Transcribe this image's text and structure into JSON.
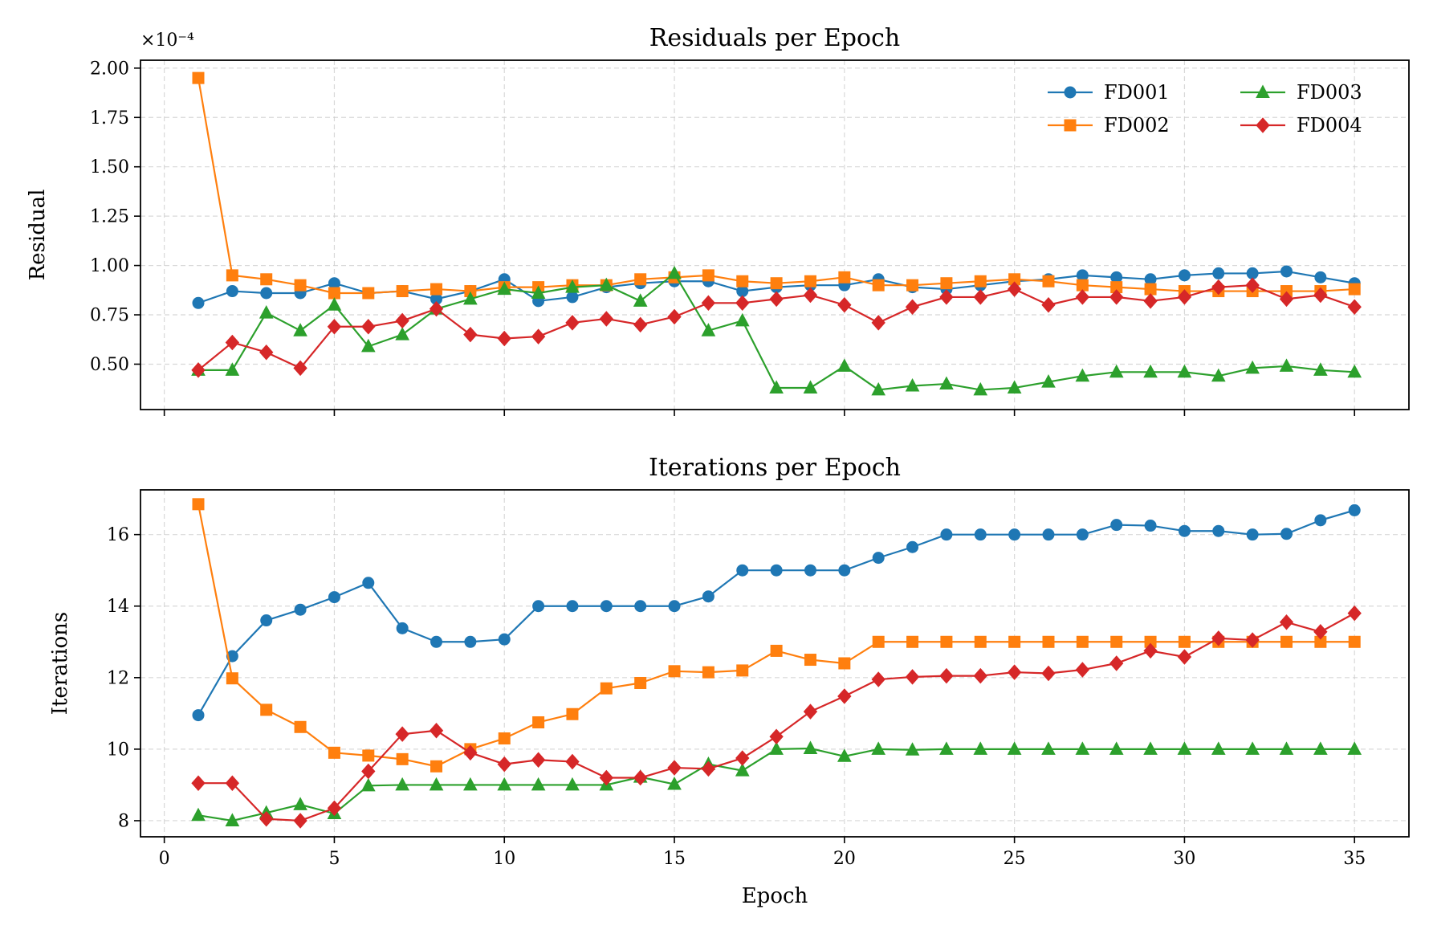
{
  "chart_data": [
    {
      "type": "line",
      "title": "Residuals per Epoch",
      "xlabel": "",
      "ylabel": "Residual",
      "multiplier": "×10⁻⁴",
      "xlim": [
        -0.7,
        36.6
      ],
      "ylim": [
        0.27,
        2.04
      ],
      "xticks": [
        0,
        5,
        10,
        15,
        20,
        25,
        30,
        35
      ],
      "yticks": [
        0.5,
        0.75,
        1.0,
        1.25,
        1.5,
        1.75,
        2.0
      ],
      "ytick_labels": [
        "0.50",
        "0.75",
        "1.00",
        "1.25",
        "1.50",
        "1.75",
        "2.00"
      ],
      "show_xtick_labels": false,
      "grid": true,
      "legend": {
        "placement": "top-right",
        "columns": 2
      },
      "x": [
        1,
        2,
        3,
        4,
        5,
        6,
        7,
        8,
        9,
        10,
        11,
        12,
        13,
        14,
        15,
        16,
        17,
        18,
        19,
        20,
        21,
        22,
        23,
        24,
        25,
        26,
        27,
        28,
        29,
        30,
        31,
        32,
        33,
        34,
        35
      ],
      "series": [
        {
          "name": "FD001",
          "color": "#1f77b4",
          "marker": "circle",
          "values": [
            0.81,
            0.87,
            0.86,
            0.86,
            0.91,
            0.86,
            0.87,
            0.83,
            0.87,
            0.93,
            0.82,
            0.84,
            0.89,
            0.91,
            0.92,
            0.92,
            0.87,
            0.89,
            0.9,
            0.9,
            0.93,
            0.89,
            0.88,
            0.9,
            0.92,
            0.93,
            0.95,
            0.94,
            0.93,
            0.95,
            0.96,
            0.96,
            0.97,
            0.94,
            0.91
          ]
        },
        {
          "name": "FD002",
          "color": "#ff7f0e",
          "marker": "square",
          "values": [
            1.95,
            0.95,
            0.93,
            0.9,
            0.86,
            0.86,
            0.87,
            0.88,
            0.87,
            0.89,
            0.89,
            0.9,
            0.9,
            0.93,
            0.94,
            0.95,
            0.92,
            0.91,
            0.92,
            0.94,
            0.9,
            0.9,
            0.91,
            0.92,
            0.93,
            0.92,
            0.9,
            0.89,
            0.88,
            0.87,
            0.87,
            0.87,
            0.87,
            0.87,
            0.88
          ]
        },
        {
          "name": "FD003",
          "color": "#2ca02c",
          "marker": "triangle",
          "values": [
            0.47,
            0.47,
            0.76,
            0.67,
            0.8,
            0.59,
            0.65,
            0.78,
            0.83,
            0.88,
            0.86,
            0.89,
            0.9,
            0.82,
            0.96,
            0.67,
            0.72,
            0.38,
            0.38,
            0.49,
            0.37,
            0.39,
            0.4,
            0.37,
            0.38,
            0.41,
            0.44,
            0.46,
            0.46,
            0.46,
            0.44,
            0.48,
            0.49,
            0.47,
            0.46
          ]
        },
        {
          "name": "FD004",
          "color": "#d62728",
          "marker": "diamond",
          "values": [
            0.47,
            0.61,
            0.56,
            0.48,
            0.69,
            0.69,
            0.72,
            0.78,
            0.65,
            0.63,
            0.64,
            0.71,
            0.73,
            0.7,
            0.74,
            0.81,
            0.81,
            0.83,
            0.85,
            0.8,
            0.71,
            0.79,
            0.84,
            0.84,
            0.88,
            0.8,
            0.84,
            0.84,
            0.82,
            0.84,
            0.89,
            0.9,
            0.83,
            0.85,
            0.79
          ]
        }
      ]
    },
    {
      "type": "line",
      "title": "Iterations per Epoch",
      "xlabel": "Epoch",
      "ylabel": "Iterations",
      "multiplier": "",
      "xlim": [
        -0.7,
        36.6
      ],
      "ylim": [
        7.55,
        17.25
      ],
      "xticks": [
        0,
        5,
        10,
        15,
        20,
        25,
        30,
        35
      ],
      "yticks": [
        8,
        10,
        12,
        14,
        16
      ],
      "ytick_labels": [
        "8",
        "10",
        "12",
        "14",
        "16"
      ],
      "show_xtick_labels": true,
      "grid": true,
      "x": [
        1,
        2,
        3,
        4,
        5,
        6,
        7,
        8,
        9,
        10,
        11,
        12,
        13,
        14,
        15,
        16,
        17,
        18,
        19,
        20,
        21,
        22,
        23,
        24,
        25,
        26,
        27,
        28,
        29,
        30,
        31,
        32,
        33,
        34,
        35
      ],
      "series": [
        {
          "name": "FD001",
          "color": "#1f77b4",
          "marker": "circle",
          "values": [
            10.95,
            12.6,
            13.6,
            13.9,
            14.25,
            14.65,
            13.38,
            13.0,
            13.0,
            13.07,
            14.0,
            14.0,
            14.0,
            14.0,
            14.0,
            14.27,
            15.0,
            15.0,
            15.0,
            15.0,
            15.35,
            15.65,
            16.0,
            16.0,
            16.0,
            16.0,
            16.0,
            16.27,
            16.25,
            16.1,
            16.1,
            16.0,
            16.02,
            16.4,
            16.68
          ]
        },
        {
          "name": "FD002",
          "color": "#ff7f0e",
          "marker": "square",
          "values": [
            16.85,
            11.98,
            11.1,
            10.62,
            9.9,
            9.82,
            9.72,
            9.52,
            10.0,
            10.3,
            10.75,
            10.98,
            11.7,
            11.85,
            12.18,
            12.15,
            12.2,
            12.75,
            12.5,
            12.4,
            13.0,
            13.0,
            13.0,
            13.0,
            13.0,
            13.0,
            13.0,
            13.0,
            13.0,
            13.0,
            13.0,
            13.0,
            13.0,
            13.0,
            13.0
          ]
        },
        {
          "name": "FD003",
          "color": "#2ca02c",
          "marker": "triangle",
          "values": [
            8.15,
            8.0,
            8.22,
            8.45,
            8.2,
            8.98,
            9.0,
            9.0,
            9.0,
            9.0,
            9.0,
            9.0,
            9.0,
            9.22,
            9.02,
            9.58,
            9.4,
            10.0,
            10.02,
            9.8,
            10.0,
            9.98,
            10.0,
            10.0,
            10.0,
            10.0,
            10.0,
            10.0,
            10.0,
            10.0,
            10.0,
            10.0,
            10.0,
            10.0,
            10.0
          ]
        },
        {
          "name": "FD004",
          "color": "#d62728",
          "marker": "diamond",
          "values": [
            9.05,
            9.05,
            8.05,
            8.0,
            8.35,
            9.38,
            10.42,
            10.52,
            9.9,
            9.58,
            9.7,
            9.65,
            9.2,
            9.2,
            9.48,
            9.45,
            9.75,
            10.35,
            11.05,
            11.48,
            11.95,
            12.02,
            12.05,
            12.05,
            12.15,
            12.12,
            12.22,
            12.4,
            12.75,
            12.58,
            13.1,
            13.05,
            13.55,
            13.28,
            13.8
          ]
        }
      ]
    }
  ]
}
